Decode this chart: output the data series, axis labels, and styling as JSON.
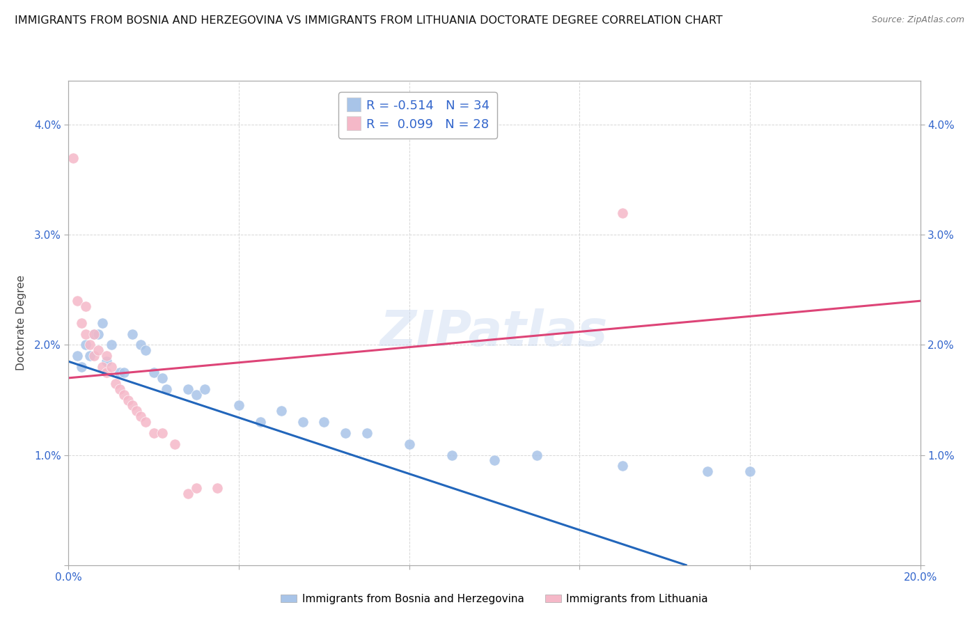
{
  "title": "IMMIGRANTS FROM BOSNIA AND HERZEGOVINA VS IMMIGRANTS FROM LITHUANIA DOCTORATE DEGREE CORRELATION CHART",
  "source": "Source: ZipAtlas.com",
  "ylabel": "Doctorate Degree",
  "xlim": [
    0.0,
    0.2
  ],
  "ylim": [
    0.0,
    0.044
  ],
  "yticks": [
    0.0,
    0.01,
    0.02,
    0.03,
    0.04
  ],
  "ytick_labels": [
    "",
    "1.0%",
    "2.0%",
    "3.0%",
    "4.0%"
  ],
  "xticks": [
    0.0,
    0.04,
    0.08,
    0.12,
    0.16,
    0.2
  ],
  "xtick_labels": [
    "0.0%",
    "",
    "",
    "",
    "",
    "20.0%"
  ],
  "legend_r_blue": "R = -0.514",
  "legend_n_blue": "N = 34",
  "legend_r_pink": "R =  0.099",
  "legend_n_pink": "N = 28",
  "blue_color": "#a8c4e8",
  "pink_color": "#f5b8c8",
  "blue_line_color": "#2266bb",
  "pink_line_color": "#dd4477",
  "watermark": "ZIPatlas",
  "blue_scatter_x": [
    0.002,
    0.003,
    0.004,
    0.005,
    0.006,
    0.007,
    0.008,
    0.009,
    0.01,
    0.012,
    0.013,
    0.015,
    0.017,
    0.018,
    0.02,
    0.022,
    0.023,
    0.028,
    0.03,
    0.032,
    0.04,
    0.045,
    0.05,
    0.055,
    0.06,
    0.065,
    0.07,
    0.08,
    0.09,
    0.1,
    0.11,
    0.13,
    0.15,
    0.16
  ],
  "blue_scatter_y": [
    0.019,
    0.018,
    0.02,
    0.019,
    0.021,
    0.021,
    0.022,
    0.0185,
    0.02,
    0.0175,
    0.0175,
    0.021,
    0.02,
    0.0195,
    0.0175,
    0.017,
    0.016,
    0.016,
    0.0155,
    0.016,
    0.0145,
    0.013,
    0.014,
    0.013,
    0.013,
    0.012,
    0.012,
    0.011,
    0.01,
    0.0095,
    0.01,
    0.009,
    0.0085,
    0.0085
  ],
  "pink_scatter_x": [
    0.001,
    0.002,
    0.003,
    0.004,
    0.004,
    0.005,
    0.006,
    0.006,
    0.007,
    0.008,
    0.009,
    0.009,
    0.01,
    0.011,
    0.012,
    0.013,
    0.014,
    0.015,
    0.016,
    0.017,
    0.018,
    0.02,
    0.022,
    0.025,
    0.028,
    0.03,
    0.035,
    0.13
  ],
  "pink_scatter_y": [
    0.037,
    0.024,
    0.022,
    0.0235,
    0.021,
    0.02,
    0.021,
    0.019,
    0.0195,
    0.018,
    0.019,
    0.0175,
    0.018,
    0.0165,
    0.016,
    0.0155,
    0.015,
    0.0145,
    0.014,
    0.0135,
    0.013,
    0.012,
    0.012,
    0.011,
    0.0065,
    0.007,
    0.007,
    0.032
  ],
  "blue_trend_x": [
    0.0,
    0.145
  ],
  "blue_trend_y": [
    0.0185,
    0.0
  ],
  "pink_trend_x": [
    0.0,
    0.2
  ],
  "pink_trend_y": [
    0.017,
    0.024
  ]
}
